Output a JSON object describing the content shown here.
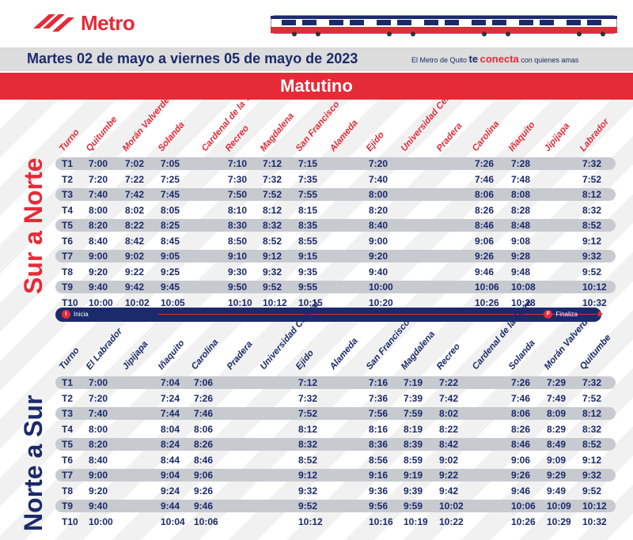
{
  "header": {
    "logo_text": "Metro",
    "date_range": "Martes 02 de mayo a viernes 05 de mayo de 2023",
    "slogan_pre": "El Metro de Quito",
    "slogan_te": "te",
    "slogan_conecta": "conecta",
    "slogan_post": "con quienes amas",
    "period_title": "Matutino"
  },
  "colors": {
    "red": "#e52b37",
    "navy": "#1b2a6b",
    "row_shade": "#c7cacf"
  },
  "direction_bar": {
    "start_icon": "I",
    "start_label": "Inicia",
    "end_icon": "F",
    "end_label": "Finaliza"
  },
  "sur_a_norte": {
    "title": "Sur a Norte",
    "turno_label": "Turno",
    "stations": [
      "Quitumbe",
      "Morán Valverde",
      "Solanda",
      "Cardenal de la Torre",
      "Recreo",
      "Magdalena",
      "San Francisco",
      "Alameda",
      "Ejido",
      "Universidad Central",
      "Pradera",
      "Carolina",
      "Iñaquito",
      "Jipijapa",
      "Labrador"
    ],
    "rows": [
      {
        "turno": "T1",
        "times": [
          "7:00",
          "7:02",
          "7:05",
          "",
          "7:10",
          "7:12",
          "7:15",
          "",
          "7:20",
          "",
          "",
          "7:26",
          "7:28",
          "",
          "7:32"
        ]
      },
      {
        "turno": "T2",
        "times": [
          "7:20",
          "7:22",
          "7:25",
          "",
          "7:30",
          "7:32",
          "7:35",
          "",
          "7:40",
          "",
          "",
          "7:46",
          "7:48",
          "",
          "7:52"
        ]
      },
      {
        "turno": "T3",
        "times": [
          "7:40",
          "7:42",
          "7:45",
          "",
          "7:50",
          "7:52",
          "7:55",
          "",
          "8:00",
          "",
          "",
          "8:06",
          "8:08",
          "",
          "8:12"
        ]
      },
      {
        "turno": "T4",
        "times": [
          "8:00",
          "8:02",
          "8:05",
          "",
          "8:10",
          "8:12",
          "8:15",
          "",
          "8:20",
          "",
          "",
          "8:26",
          "8:28",
          "",
          "8:32"
        ]
      },
      {
        "turno": "T5",
        "times": [
          "8:20",
          "8:22",
          "8:25",
          "",
          "8:30",
          "8:32",
          "8:35",
          "",
          "8:40",
          "",
          "",
          "8:46",
          "8:48",
          "",
          "8:52"
        ]
      },
      {
        "turno": "T6",
        "times": [
          "8:40",
          "8:42",
          "8:45",
          "",
          "8:50",
          "8:52",
          "8:55",
          "",
          "9:00",
          "",
          "",
          "9:06",
          "9:08",
          "",
          "9:12"
        ]
      },
      {
        "turno": "T7",
        "times": [
          "9:00",
          "9:02",
          "9:05",
          "",
          "9:10",
          "9:12",
          "9:15",
          "",
          "9:20",
          "",
          "",
          "9:26",
          "9:28",
          "",
          "9:32"
        ]
      },
      {
        "turno": "T8",
        "times": [
          "9:20",
          "9:22",
          "9:25",
          "",
          "9:30",
          "9:32",
          "9:35",
          "",
          "9:40",
          "",
          "",
          "9:46",
          "9:48",
          "",
          "9:52"
        ]
      },
      {
        "turno": "T9",
        "times": [
          "9:40",
          "9:42",
          "9:45",
          "",
          "9:50",
          "9:52",
          "9:55",
          "",
          "10:00",
          "",
          "",
          "10:06",
          "10:08",
          "",
          "10:12"
        ]
      },
      {
        "turno": "T10",
        "times": [
          "10:00",
          "10:02",
          "10:05",
          "",
          "10:10",
          "10:12",
          "10:15",
          "",
          "10:20",
          "",
          "",
          "10:26",
          "10:28",
          "",
          "10:32"
        ]
      }
    ]
  },
  "norte_a_sur": {
    "title": "Norte a Sur",
    "turno_label": "Turno",
    "stations": [
      "El Labrador",
      "Jipijapa",
      "Iñaquito",
      "Carolina",
      "Pradera",
      "Universidad Central",
      "Ejido",
      "Alameda",
      "San Francisco",
      "Magdalena",
      "Recreo",
      "Cardenal de la Torre",
      "Solanda",
      "Morán Valverde",
      "Quitumbe"
    ],
    "rows": [
      {
        "turno": "T1",
        "times": [
          "7:00",
          "",
          "7:04",
          "7:06",
          "",
          "",
          "7:12",
          "",
          "7:16",
          "7:19",
          "7:22",
          "",
          "7:26",
          "7:29",
          "7:32"
        ]
      },
      {
        "turno": "T2",
        "times": [
          "7:20",
          "",
          "7:24",
          "7:26",
          "",
          "",
          "7:32",
          "",
          "7:36",
          "7:39",
          "7:42",
          "",
          "7:46",
          "7:49",
          "7:52"
        ]
      },
      {
        "turno": "T3",
        "times": [
          "7:40",
          "",
          "7:44",
          "7:46",
          "",
          "",
          "7:52",
          "",
          "7:56",
          "7:59",
          "8:02",
          "",
          "8:06",
          "8:09",
          "8:12"
        ]
      },
      {
        "turno": "T4",
        "times": [
          "8:00",
          "",
          "8:04",
          "8:06",
          "",
          "",
          "8:12",
          "",
          "8:16",
          "8:19",
          "8:22",
          "",
          "8:26",
          "8:29",
          "8:32"
        ]
      },
      {
        "turno": "T5",
        "times": [
          "8:20",
          "",
          "8:24",
          "8:26",
          "",
          "",
          "8:32",
          "",
          "8:36",
          "8:39",
          "8:42",
          "",
          "8:46",
          "8:49",
          "8:52"
        ]
      },
      {
        "turno": "T6",
        "times": [
          "8:40",
          "",
          "8:44",
          "8:46",
          "",
          "",
          "8:52",
          "",
          "8:56",
          "8:59",
          "9:02",
          "",
          "9:06",
          "9:09",
          "9:12"
        ]
      },
      {
        "turno": "T7",
        "times": [
          "9:00",
          "",
          "9:04",
          "9:06",
          "",
          "",
          "9:12",
          "",
          "9:16",
          "9:19",
          "9:22",
          "",
          "9:26",
          "9:29",
          "9:32"
        ]
      },
      {
        "turno": "T8",
        "times": [
          "9:20",
          "",
          "9:24",
          "9:26",
          "",
          "",
          "9:32",
          "",
          "9:36",
          "9:39",
          "9:42",
          "",
          "9:46",
          "9:49",
          "9:52"
        ]
      },
      {
        "turno": "T9",
        "times": [
          "9:40",
          "",
          "9:44",
          "9:46",
          "",
          "",
          "9:52",
          "",
          "9:56",
          "9:59",
          "10:02",
          "",
          "10:06",
          "10:09",
          "10:12"
        ]
      },
      {
        "turno": "T10",
        "times": [
          "10:00",
          "",
          "10:04",
          "10:06",
          "",
          "",
          "10:12",
          "",
          "10:16",
          "10:19",
          "10:22",
          "",
          "10:26",
          "10:29",
          "10:32"
        ]
      }
    ]
  }
}
